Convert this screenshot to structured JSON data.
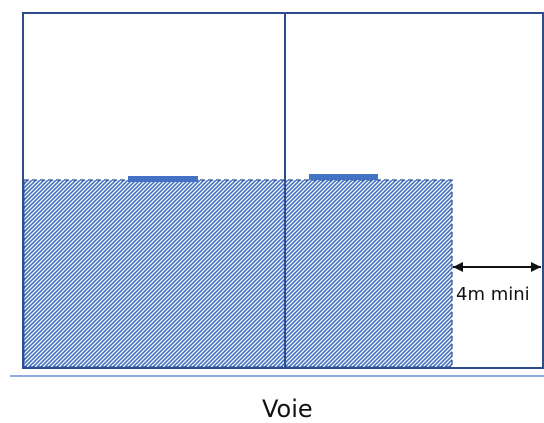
{
  "dimension": {
    "label": "4m mini"
  },
  "road": {
    "label": "Voie"
  },
  "colors": {
    "outline": "#2d4d8e",
    "hatch": "#4472c4",
    "marker": "#4472c4",
    "road_line": "#8faadc",
    "text": "#111111"
  }
}
